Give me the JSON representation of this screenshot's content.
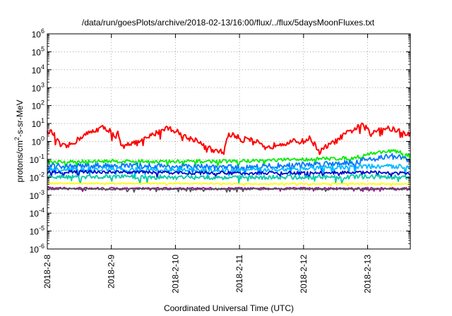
{
  "chart_data": {
    "type": "line",
    "title": "/data/run/goesPlots/archive/2018-02-13/16:00/flux/../flux/5daysMoonFluxes.txt",
    "xlabel": "Coordinated Universal Time (UTC)",
    "ylabel": {
      "base": "protons/cm",
      "sup": "2",
      "rest": "-s-sr-MeV"
    },
    "y_scale": "log",
    "ylim": [
      1e-06,
      1000000.0
    ],
    "y_ticks": [
      {
        "value": 1e-06,
        "base": "10",
        "exp": "-6"
      },
      {
        "value": 1e-05,
        "base": "10",
        "exp": "-5"
      },
      {
        "value": 0.0001,
        "base": "10",
        "exp": "-4"
      },
      {
        "value": 0.001,
        "base": "10",
        "exp": "-3"
      },
      {
        "value": 0.01,
        "base": "10",
        "exp": "-2"
      },
      {
        "value": 0.1,
        "base": "10",
        "exp": "-1"
      },
      {
        "value": 1,
        "base": "10",
        "exp": "0"
      },
      {
        "value": 10,
        "base": "10",
        "exp": "1"
      },
      {
        "value": 100,
        "base": "10",
        "exp": "2"
      },
      {
        "value": 1000,
        "base": "10",
        "exp": "3"
      },
      {
        "value": 10000,
        "base": "10",
        "exp": "4"
      },
      {
        "value": 100000,
        "base": "10",
        "exp": "5"
      },
      {
        "value": 1000000,
        "base": "10",
        "exp": "6"
      }
    ],
    "xlim": [
      "2018-02-08",
      "2018-02-13 16:00"
    ],
    "x_ticks": [
      "2018-2-8",
      "2018-2-9",
      "2018-2-10",
      "2018-2-11",
      "2018-2-12",
      "2018-2-13"
    ],
    "x_unit": "days",
    "grid": true,
    "series": [
      {
        "color": "#ff0000",
        "noise": 0.15,
        "values": [
          [
            0.0,
            5
          ],
          [
            0.1,
            2.5
          ],
          [
            0.2,
            0.6
          ],
          [
            0.3,
            0.5
          ],
          [
            0.4,
            0.8
          ],
          [
            0.55,
            2
          ],
          [
            0.7,
            3.5
          ],
          [
            0.85,
            6
          ],
          [
            1.0,
            4
          ],
          [
            1.05,
            1.2
          ],
          [
            1.1,
            3
          ],
          [
            1.15,
            0.5
          ],
          [
            1.2,
            0.8
          ],
          [
            1.4,
            0.8
          ],
          [
            1.55,
            1.5
          ],
          [
            1.7,
            3
          ],
          [
            1.85,
            6
          ],
          [
            2.0,
            4
          ],
          [
            2.2,
            1.5
          ],
          [
            2.35,
            1.2
          ],
          [
            2.45,
            0.5
          ],
          [
            2.55,
            0.4
          ],
          [
            2.6,
            0.25
          ],
          [
            2.7,
            0.3
          ],
          [
            2.75,
            0.2
          ],
          [
            2.8,
            1.5
          ],
          [
            2.85,
            2.5
          ],
          [
            2.95,
            2
          ],
          [
            3.05,
            1
          ],
          [
            3.1,
            2
          ],
          [
            3.2,
            1.2
          ],
          [
            3.3,
            0.8
          ],
          [
            3.4,
            0.35
          ],
          [
            3.5,
            0.5
          ],
          [
            3.6,
            0.8
          ],
          [
            3.7,
            0.8
          ],
          [
            3.85,
            1
          ],
          [
            4.0,
            1
          ],
          [
            4.1,
            1.5
          ],
          [
            4.2,
            0.5
          ],
          [
            4.25,
            0.25
          ],
          [
            4.35,
            0.5
          ],
          [
            4.5,
            1
          ],
          [
            4.65,
            2.5
          ],
          [
            4.8,
            5
          ],
          [
            4.9,
            8
          ],
          [
            5.0,
            5
          ],
          [
            5.05,
            2
          ],
          [
            5.1,
            4
          ],
          [
            5.2,
            6
          ],
          [
            5.35,
            5
          ],
          [
            5.5,
            4
          ],
          [
            5.6,
            2.5
          ],
          [
            5.67,
            3
          ]
        ]
      },
      {
        "color": "#00ee00",
        "noise": 0.1,
        "values": [
          [
            0.0,
            0.07
          ],
          [
            1.0,
            0.08
          ],
          [
            2.0,
            0.075
          ],
          [
            3.0,
            0.08
          ],
          [
            4.0,
            0.1
          ],
          [
            4.8,
            0.12
          ],
          [
            5.0,
            0.2
          ],
          [
            5.35,
            0.3
          ],
          [
            5.5,
            0.25
          ],
          [
            5.67,
            0.15
          ]
        ]
      },
      {
        "color": "#0077ff",
        "noise": 0.16,
        "values": [
          [
            0.0,
            0.04
          ],
          [
            1.0,
            0.045
          ],
          [
            2.0,
            0.04
          ],
          [
            3.0,
            0.035
          ],
          [
            4.0,
            0.05
          ],
          [
            4.8,
            0.07
          ],
          [
            5.0,
            0.1
          ],
          [
            5.35,
            0.15
          ],
          [
            5.55,
            0.12
          ],
          [
            5.67,
            0.08
          ]
        ]
      },
      {
        "color": "#00bbff",
        "noise": 0.13,
        "values": [
          [
            0.0,
            0.025
          ],
          [
            1.0,
            0.028
          ],
          [
            2.0,
            0.025
          ],
          [
            3.0,
            0.024
          ],
          [
            4.0,
            0.03
          ],
          [
            5.0,
            0.04
          ],
          [
            5.67,
            0.04
          ]
        ]
      },
      {
        "color": "#0000cc",
        "noise": 0.09,
        "values": [
          [
            0.0,
            0.02
          ],
          [
            1.0,
            0.02
          ],
          [
            2.0,
            0.018
          ],
          [
            3.0,
            0.017
          ],
          [
            4.0,
            0.017
          ],
          [
            5.0,
            0.019
          ],
          [
            5.67,
            0.016
          ]
        ]
      },
      {
        "color": "#00ccaa",
        "noise": 0.12,
        "values": [
          [
            0.0,
            0.01
          ],
          [
            1.0,
            0.011
          ],
          [
            2.0,
            0.01
          ],
          [
            3.0,
            0.01
          ],
          [
            4.0,
            0.01
          ],
          [
            5.0,
            0.011
          ],
          [
            5.67,
            0.01
          ]
        ]
      },
      {
        "color": "#ffff00",
        "noise": 0.03,
        "values": [
          [
            0.0,
            0.0045
          ],
          [
            1.0,
            0.0045
          ],
          [
            2.0,
            0.0045
          ],
          [
            3.0,
            0.0043
          ],
          [
            4.0,
            0.0043
          ],
          [
            5.0,
            0.0043
          ],
          [
            5.67,
            0.0042
          ]
        ]
      },
      {
        "color": "#aa00aa",
        "noise": 0.05,
        "values": [
          [
            0.0,
            0.0025
          ],
          [
            1.0,
            0.0024
          ],
          [
            2.0,
            0.0024
          ],
          [
            3.0,
            0.0024
          ],
          [
            4.0,
            0.0024
          ],
          [
            5.0,
            0.0024
          ],
          [
            5.67,
            0.0024
          ]
        ]
      },
      {
        "color": "#555555",
        "noise": 0.05,
        "values": [
          [
            0.0,
            0.0023
          ],
          [
            1.0,
            0.0022
          ],
          [
            2.0,
            0.0022
          ],
          [
            3.0,
            0.0022
          ],
          [
            4.0,
            0.0022
          ],
          [
            5.0,
            0.0022
          ],
          [
            5.67,
            0.0022
          ]
        ]
      }
    ]
  }
}
